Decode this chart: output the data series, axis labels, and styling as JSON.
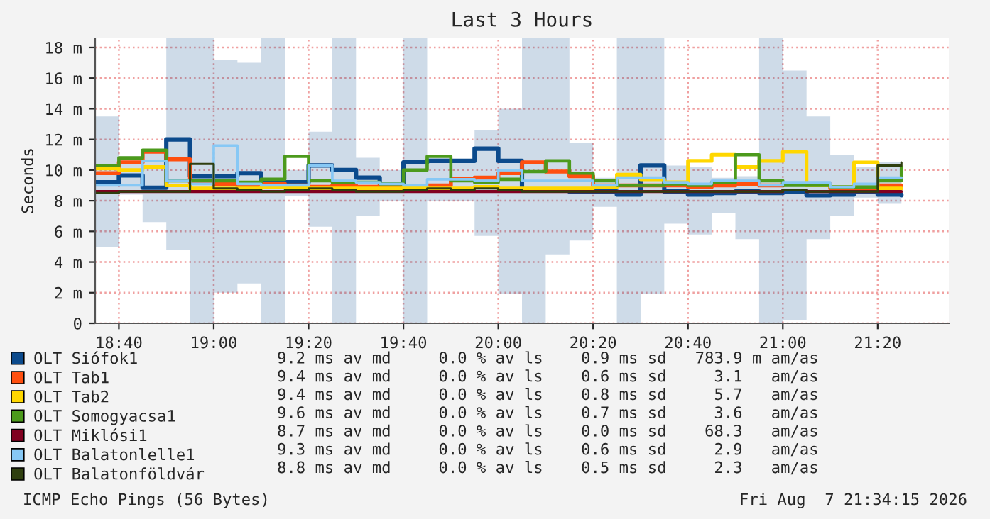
{
  "chart_data": {
    "type": "step",
    "title": "Last 3 Hours",
    "ylabel": "Seconds",
    "x": [
      18.5833,
      18.6667,
      18.75,
      18.8333,
      18.9167,
      19.0,
      19.0833,
      19.1667,
      19.25,
      19.3333,
      19.4167,
      19.5,
      19.5833,
      19.6667,
      19.75,
      19.8333,
      19.9167,
      20.0,
      20.0833,
      20.1667,
      20.25,
      20.3333,
      20.4167,
      20.5,
      20.5833,
      20.6667,
      20.75,
      20.8333,
      20.9167,
      21.0,
      21.0833,
      21.1667,
      21.25,
      21.3333,
      21.4167
    ],
    "series": [
      {
        "name": "OLT Siófok1",
        "color": "#0b4a8c",
        "values": [
          9.2,
          9.65,
          8.85,
          12.0,
          9.6,
          9.6,
          9.8,
          9.2,
          9.2,
          10.3,
          10.0,
          9.5,
          9.1,
          10.5,
          10.6,
          10.6,
          11.4,
          10.6,
          8.65,
          8.7,
          8.6,
          8.6,
          8.4,
          10.3,
          8.6,
          8.4,
          8.5,
          8.6,
          8.5,
          8.6,
          8.35,
          8.4,
          8.6,
          8.4,
          8.35
        ],
        "lower": [
          5.0,
          8.4,
          6.6,
          4.8,
          0,
          2.0,
          2.6,
          0,
          8.3,
          6.3,
          0,
          7.0,
          8.0,
          0,
          8.0,
          8.0,
          5.7,
          1.9,
          0,
          4.5,
          5.4,
          7.6,
          0,
          1.9,
          6.5,
          5.8,
          7.2,
          5.5,
          0,
          0.2,
          5.5,
          7.0,
          8.2,
          7.8,
          0
        ],
        "upper": [
          13.5,
          10.9,
          11.2,
          18.6,
          18.6,
          17.2,
          17.0,
          18.6,
          10.0,
          12.5,
          18.6,
          10.8,
          10.0,
          18.6,
          10.8,
          10.6,
          12.6,
          14.0,
          18.6,
          18.6,
          11.8,
          9.5,
          18.6,
          18.6,
          10.3,
          10.2,
          9.5,
          9.6,
          18.6,
          16.5,
          13.5,
          11.0,
          10.2,
          10.5,
          18.6
        ]
      },
      {
        "name": "OLT Tab1",
        "color": "#ff4f0f",
        "values": [
          9.8,
          10.5,
          11.2,
          10.7,
          9.2,
          9.1,
          8.9,
          9.1,
          9.0,
          8.9,
          9.0,
          8.9,
          9.0,
          8.9,
          9.0,
          9.4,
          9.5,
          9.8,
          10.5,
          9.9,
          9.6,
          9.0,
          9.0,
          9.0,
          9.0,
          8.9,
          9.0,
          9.1,
          9.0,
          9.1,
          9.1,
          8.8,
          8.7,
          9.0,
          9.0
        ]
      },
      {
        "name": "OLT Tab2",
        "color": "#ffd700",
        "values": [
          10.1,
          10.0,
          10.2,
          9.0,
          8.8,
          8.8,
          8.8,
          8.9,
          8.9,
          8.8,
          8.8,
          8.8,
          8.8,
          8.9,
          8.8,
          8.8,
          8.9,
          8.8,
          8.8,
          8.8,
          8.8,
          8.9,
          9.7,
          9.4,
          9.2,
          10.6,
          11.0,
          10.2,
          10.6,
          11.2,
          9.0,
          8.9,
          10.5,
          8.8,
          8.8
        ]
      },
      {
        "name": "OLT Somogyacsa1",
        "color": "#4c9a1c",
        "values": [
          10.3,
          10.8,
          11.3,
          9.3,
          9.3,
          9.3,
          9.2,
          9.4,
          10.9,
          9.3,
          9.2,
          9.2,
          9.1,
          10.0,
          10.9,
          9.3,
          9.2,
          9.4,
          9.9,
          10.6,
          9.8,
          9.3,
          9.0,
          9.0,
          9.1,
          9.0,
          9.2,
          11.0,
          9.3,
          9.0,
          9.0,
          8.9,
          8.9,
          9.3,
          10.2
        ]
      },
      {
        "name": "OLT Miklósi1",
        "color": "#800020",
        "values": [
          8.6,
          8.6,
          8.6,
          8.6,
          8.6,
          8.6,
          8.6,
          8.6,
          8.6,
          8.6,
          8.6,
          8.6,
          8.6,
          8.6,
          8.6,
          8.6,
          8.6,
          8.6,
          8.6,
          8.6,
          8.6,
          8.6,
          8.6,
          8.6,
          8.6,
          8.6,
          8.6,
          8.6,
          8.6,
          8.7,
          8.6,
          8.6,
          8.6,
          8.6,
          8.6
        ]
      },
      {
        "name": "OLT Balatonlelle1",
        "color": "#87c8f5",
        "values": [
          9.0,
          9.0,
          10.6,
          9.3,
          9.1,
          11.6,
          9.1,
          9.0,
          9.0,
          10.3,
          9.3,
          9.2,
          9.1,
          9.0,
          9.4,
          9.4,
          9.3,
          10.0,
          9.3,
          9.3,
          9.3,
          9.0,
          9.5,
          9.5,
          9.2,
          9.1,
          9.3,
          9.3,
          9.0,
          9.2,
          9.2,
          8.9,
          9.1,
          9.5,
          9.5
        ]
      },
      {
        "name": "OLT Balatonföldvár",
        "color": "#2f3f0f",
        "values": [
          8.5,
          8.6,
          8.6,
          8.6,
          10.4,
          8.8,
          8.7,
          8.6,
          8.7,
          8.8,
          8.7,
          8.6,
          8.6,
          8.7,
          8.8,
          8.7,
          8.8,
          8.7,
          8.6,
          8.6,
          8.6,
          8.6,
          8.6,
          8.6,
          8.6,
          8.6,
          8.6,
          8.6,
          8.6,
          8.7,
          8.6,
          8.6,
          8.6,
          10.3,
          10.5
        ]
      }
    ],
    "xlim": [
      18.5833,
      21.5833
    ],
    "xticks": [
      {
        "value": 18.6667,
        "label": "18:40"
      },
      {
        "value": 19.0,
        "label": "19:00"
      },
      {
        "value": 19.3333,
        "label": "19:20"
      },
      {
        "value": 19.6667,
        "label": "19:40"
      },
      {
        "value": 20.0,
        "label": "20:00"
      },
      {
        "value": 20.3333,
        "label": "20:20"
      },
      {
        "value": 20.6667,
        "label": "20:40"
      },
      {
        "value": 21.0,
        "label": "21:00"
      },
      {
        "value": 21.3333,
        "label": "21:20"
      }
    ],
    "ylim": [
      0,
      18.6
    ],
    "yticks": [
      0,
      {
        "value": 2,
        "label": "2 m"
      },
      {
        "value": 4,
        "label": "4 m"
      },
      {
        "value": 6,
        "label": "6 m"
      },
      {
        "value": 8,
        "label": "8 m"
      },
      {
        "value": 10,
        "label": "10 m"
      },
      {
        "value": 12,
        "label": "12 m"
      },
      {
        "value": 14,
        "label": "14 m"
      },
      {
        "value": 16,
        "label": "16 m"
      },
      {
        "value": 18,
        "label": "18 m"
      }
    ],
    "grid": true,
    "legend": "bottom",
    "annotations": [
      "9.2 ms av md     0.0 % av ls    0.9 ms sd   783.9 m am/as",
      "9.4 ms av md     0.0 % av ls    0.6 ms sd     3.1   am/as",
      "9.4 ms av md     0.0 % av ls    0.8 ms sd     5.7   am/as",
      "9.6 ms av md     0.0 % av ls    0.7 ms sd     3.6   am/as",
      "8.7 ms av md     0.0 % av ls    0.0 ms sd    68.3   am/as",
      "9.3 ms av md     0.0 % av ls    0.6 ms sd     2.9   am/as",
      "8.8 ms av md     0.0 % av ls    0.5 ms sd     2.3   am/as",
      "ICMP Echo Pings (56 Bytes)",
      "Fri Aug  7 21:34:15 2026"
    ]
  }
}
